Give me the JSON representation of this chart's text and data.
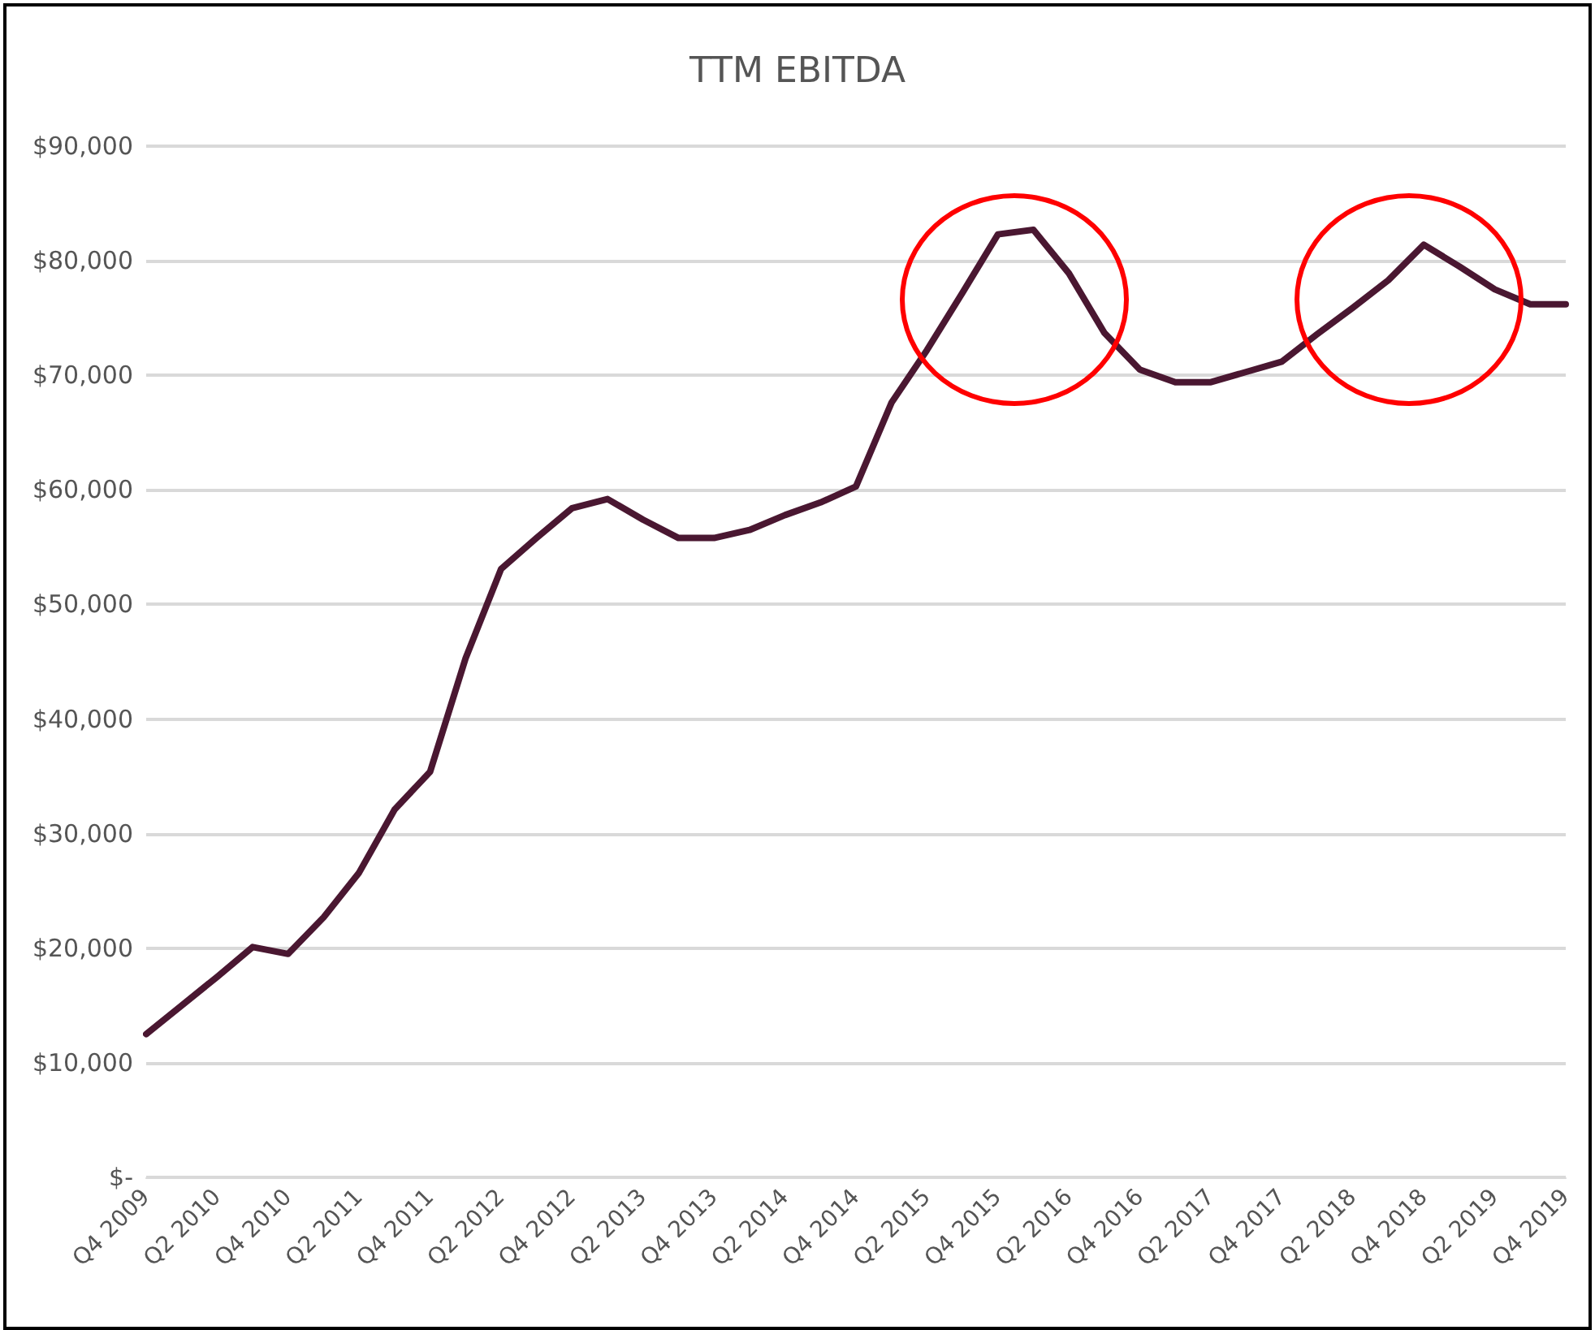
{
  "chart_data": {
    "type": "line",
    "title": "TTM EBITDA",
    "categories": [
      "Q4 2009",
      null,
      "Q2 2010",
      null,
      "Q4 2010",
      null,
      "Q2 2011",
      null,
      "Q4 2011",
      null,
      "Q2 2012",
      null,
      "Q4 2012",
      null,
      "Q2 2013",
      null,
      "Q4 2013",
      null,
      "Q2 2014",
      null,
      "Q4 2014",
      null,
      "Q2 2015",
      null,
      "Q4 2015",
      null,
      "Q2 2016",
      null,
      "Q4 2016",
      null,
      "Q2 2017",
      null,
      "Q4 2017",
      null,
      "Q2 2018",
      null,
      "Q4 2018",
      null,
      "Q2 2019",
      null,
      "Q4 2019"
    ],
    "series": [
      {
        "color": "#4a1731",
        "values": [
          12500,
          15000,
          17500,
          20100,
          19500,
          22700,
          26600,
          32100,
          35400,
          45300,
          53100,
          55800,
          58400,
          59200,
          57400,
          55800,
          55800,
          56500,
          57800,
          58900,
          60300,
          67600,
          72200,
          77200,
          82300,
          82700,
          78900,
          73700,
          70500,
          69400,
          69400,
          70300,
          71200,
          73600,
          75900,
          78300,
          81400,
          79500,
          77500,
          76200,
          76200
        ]
      }
    ],
    "ylim": [
      0,
      90000
    ],
    "yticks": [
      {
        "value": 0,
        "label": "$-"
      },
      {
        "value": 10000,
        "label": "$10,000"
      },
      {
        "value": 20000,
        "label": "$20,000"
      },
      {
        "value": 30000,
        "label": "$30,000"
      },
      {
        "value": 40000,
        "label": "$40,000"
      },
      {
        "value": 50000,
        "label": "$50,000"
      },
      {
        "value": 60000,
        "label": "$60,000"
      },
      {
        "value": 70000,
        "label": "$70,000"
      },
      {
        "value": 80000,
        "label": "$80,000"
      },
      {
        "value": 90000,
        "label": "$90,000"
      }
    ],
    "grid": "y",
    "marker": "none",
    "line_style": "solid"
  }
}
